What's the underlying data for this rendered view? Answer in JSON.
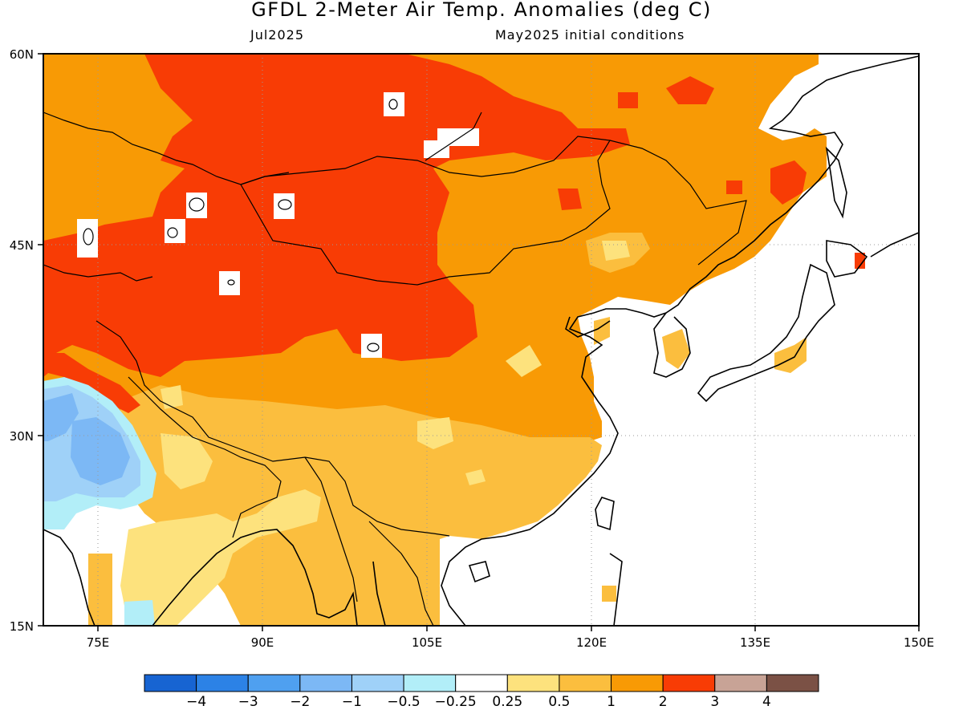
{
  "title": "GFDL 2-Meter Air Temp. Anomalies (deg C)",
  "valid_month": "Jul2025",
  "init_label": "May2025 initial conditions",
  "lat_ticks": [
    "60N",
    "45N",
    "30N",
    "15N"
  ],
  "lon_ticks": [
    "75E",
    "90E",
    "105E",
    "120E",
    "135E",
    "150E"
  ],
  "colorbar": {
    "colors": [
      "#1764d2",
      "#2c82e6",
      "#4fa0f0",
      "#7cb8f5",
      "#9fd1f8",
      "#b2eef8",
      "#ffffff",
      "#fde27d",
      "#fbbe3e",
      "#f89a05",
      "#f83c05",
      "#c8a396",
      "#7b5145"
    ],
    "labels": [
      "−4",
      "−3",
      "−2",
      "−1",
      "−0.5",
      "−0.25",
      "0.25",
      "0.5",
      "1",
      "2",
      "3",
      "4"
    ]
  },
  "map_extent": {
    "lon": [
      70,
      150
    ],
    "lat": [
      15,
      60
    ]
  }
}
